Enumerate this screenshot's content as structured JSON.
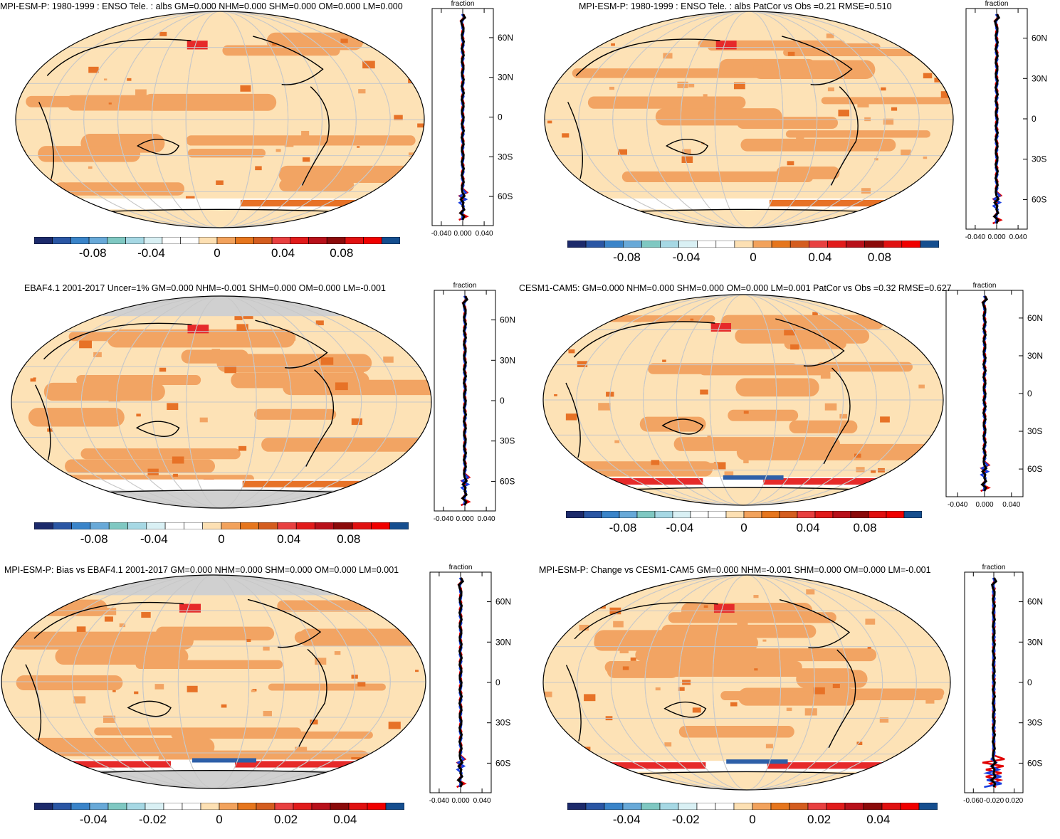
{
  "colormap": [
    "#1c2a6b",
    "#2a56a4",
    "#3a84c9",
    "#68a9d8",
    "#7fc8c2",
    "#a6d8e4",
    "#d9f0f4",
    "#ffffff",
    "#ffffff",
    "#fde0b3",
    "#f2a25c",
    "#e6761d",
    "#d45d1f",
    "#e84040",
    "#e11b1b",
    "#b8101a",
    "#8b0a0a",
    "#e01010",
    "#f00000",
    "#154e8f"
  ],
  "land_ocean_tones": {
    "base": "#fde2b6",
    "mid": "#f2a463",
    "strong": "#e77227",
    "hot": "#e62a2a",
    "cold": "#2d5fa8",
    "missing": "#d0d0d0"
  },
  "panels": [
    {
      "id": "p1",
      "title": "MPI-ESM-P: 1980-1999 : ENSO Tele. : albs GM=0.000 NHM=0.000 SHM=0.000 OM=0.000 LM=0.000",
      "cbar_labels": [
        "-0.08",
        "-0.04",
        "0",
        "0.04",
        "0.08"
      ],
      "zonal_title": "fraction",
      "zonal_x_labels": [
        "-0.040",
        "0.000",
        "0.040"
      ],
      "zonal_y_labels": [
        "60N",
        "30N",
        "0",
        "30S",
        "60S"
      ]
    },
    {
      "id": "p2",
      "title": "MPI-ESM-P: 1980-1999 : ENSO Tele. : albs PatCor vs Obs =0.21 RMSE=0.510",
      "cbar_labels": [
        "-0.08",
        "-0.04",
        "0",
        "0.04",
        "0.08"
      ],
      "zonal_title": "fraction",
      "zonal_x_labels": [
        "-0.040",
        "0.000",
        "0.040"
      ],
      "zonal_y_labels": [
        "60N",
        "30N",
        "0",
        "30S",
        "60S"
      ]
    },
    {
      "id": "p3",
      "title": "EBAF4.1 2001-2017 Uncer=1% GM=0.000 NHM=-0.001 SHM=0.000 OM=0.000 LM=-0.001",
      "cbar_labels": [
        "-0.08",
        "-0.04",
        "0",
        "0.04",
        "0.08"
      ],
      "zonal_title": "fraction",
      "zonal_x_labels": [
        "-0.040",
        "0.000",
        "0.040"
      ],
      "zonal_y_labels": [
        "60N",
        "30N",
        "0",
        "30S",
        "60S"
      ]
    },
    {
      "id": "p4",
      "title": "CESM1-CAM5: GM=0.000 NHM=0.000 SHM=0.000 OM=0.000 LM=0.001 PatCor vs Obs =0.32 RMSE=0.627",
      "cbar_labels": [
        "-0.08",
        "-0.04",
        "0",
        "0.04",
        "0.08"
      ],
      "zonal_title": "fraction",
      "zonal_x_labels": [
        "-0.040",
        "0.000",
        "0.040"
      ],
      "zonal_y_labels": [
        "60N",
        "30N",
        "0",
        "30S",
        "60S"
      ]
    },
    {
      "id": "p5",
      "title": "MPI-ESM-P: Bias vs EBAF4.1 2001-2017 GM=0.000 NHM=0.000 SHM=0.000 OM=0.000 LM=0.001",
      "cbar_labels": [
        "-0.04",
        "-0.02",
        "0",
        "0.02",
        "0.04"
      ],
      "zonal_title": "fraction",
      "zonal_x_labels": [
        "-0.040",
        "0.000",
        "0.040"
      ],
      "zonal_y_labels": [
        "60N",
        "30N",
        "0",
        "30S",
        "60S"
      ]
    },
    {
      "id": "p6",
      "title": "MPI-ESM-P: Change vs CESM1-CAM5 GM=0.000 NHM=-0.001 SHM=0.000 OM=0.000 LM=-0.001",
      "cbar_labels": [
        "-0.04",
        "-0.02",
        "0",
        "0.02",
        "0.04"
      ],
      "zonal_title": "fraction",
      "zonal_x_labels": [
        "-0.060",
        "-0.020",
        "0.020"
      ],
      "zonal_y_labels": [
        "60N",
        "30N",
        "0",
        "30S",
        "60S"
      ]
    }
  ]
}
